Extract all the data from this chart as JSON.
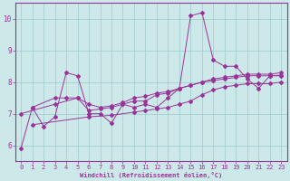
{
  "xlabel": "Windchill (Refroidissement éolien,°C)",
  "background_color": "#cce8e8",
  "line_color": "#993399",
  "grid_color": "#99cccc",
  "xlim": [
    -0.5,
    23.5
  ],
  "ylim": [
    5.5,
    10.5
  ],
  "yticks": [
    6,
    7,
    8,
    9,
    10
  ],
  "xticks": [
    0,
    1,
    2,
    3,
    4,
    5,
    6,
    7,
    8,
    9,
    10,
    11,
    12,
    13,
    14,
    15,
    16,
    17,
    18,
    19,
    20,
    21,
    22,
    23
  ],
  "line1": [
    5.9,
    7.2,
    6.6,
    6.9,
    8.3,
    8.2,
    7.0,
    7.0,
    6.7,
    7.3,
    7.2,
    7.3,
    7.2,
    7.5,
    7.8,
    10.1,
    10.2,
    8.7,
    8.5,
    8.5,
    8.1,
    7.8,
    8.2,
    8.2
  ],
  "line2_x": [
    1,
    3,
    4,
    5,
    6,
    7,
    8,
    9,
    10,
    11,
    12,
    13,
    14,
    15,
    16,
    17,
    18,
    19,
    20,
    21,
    22,
    23
  ],
  "line2_y": [
    7.2,
    7.5,
    7.5,
    7.5,
    7.1,
    7.15,
    7.2,
    7.3,
    7.4,
    7.4,
    7.6,
    7.65,
    7.8,
    7.9,
    8.0,
    8.1,
    8.15,
    8.2,
    8.25,
    8.25,
    8.25,
    8.3
  ],
  "line3_x": [
    0,
    3,
    5,
    6,
    7,
    8,
    9,
    10,
    11,
    12,
    13,
    14,
    15,
    16,
    17,
    18,
    19,
    20,
    21,
    22,
    23
  ],
  "line3_y": [
    7.0,
    7.3,
    7.5,
    7.3,
    7.2,
    7.25,
    7.35,
    7.5,
    7.55,
    7.65,
    7.7,
    7.8,
    7.9,
    8.0,
    8.05,
    8.1,
    8.15,
    8.2,
    8.2,
    8.2,
    8.22
  ],
  "line4_x": [
    1,
    6,
    8,
    10,
    11,
    12,
    13,
    14,
    15,
    16,
    17,
    18,
    19,
    20,
    21,
    22,
    23
  ],
  "line4_y": [
    6.65,
    6.9,
    6.95,
    7.05,
    7.1,
    7.15,
    7.2,
    7.3,
    7.4,
    7.6,
    7.75,
    7.85,
    7.9,
    7.95,
    7.95,
    7.95,
    8.0
  ]
}
